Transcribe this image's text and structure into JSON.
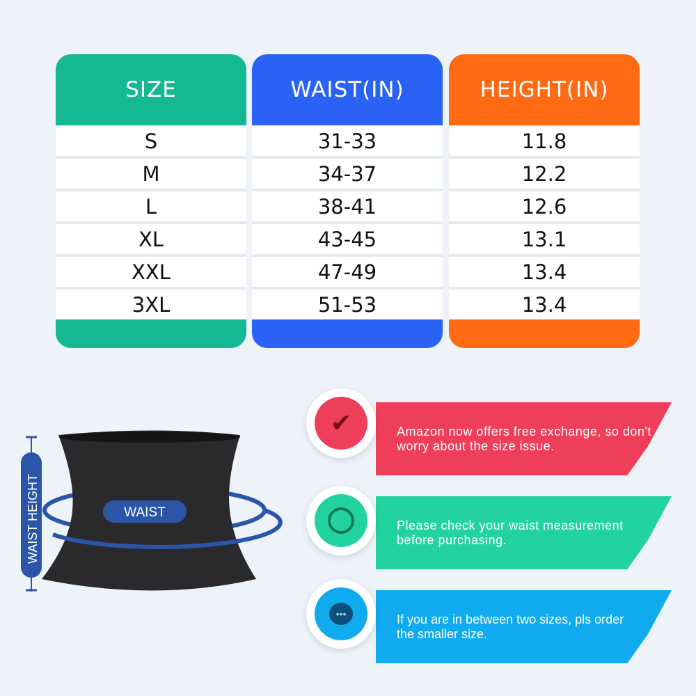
{
  "table": {
    "headers": [
      "SIZE",
      "WAIST(IN)",
      "HEIGHT(IN)"
    ],
    "header_colors": [
      "#14b892",
      "#2a62f5",
      "#ff6a12"
    ],
    "rows": [
      [
        "S",
        "31-33",
        "11.8"
      ],
      [
        "M",
        "34-37",
        "12.2"
      ],
      [
        "L",
        "38-41",
        "12.6"
      ],
      [
        "XL",
        "43-45",
        "13.1"
      ],
      [
        "XXL",
        "47-49",
        "13.4"
      ],
      [
        "3XL",
        "51-53",
        "13.4"
      ]
    ]
  },
  "diagram": {
    "waist_label": "WAIST",
    "height_label": "WAIST HEIGHT"
  },
  "tips": [
    {
      "text": "Amazon now offers free exchange, so don't worry about the size issue.",
      "icon": "lightbulb-check-icon",
      "color": "#ee3e5a"
    },
    {
      "text": "Please check your waist measurement before purchasing.",
      "icon": "clock-icon",
      "color": "#22d3a0"
    },
    {
      "text": "If you are in between two sizes, pls order the smaller size.",
      "icon": "chat-bubble-icon",
      "color": "#10aaee"
    }
  ]
}
